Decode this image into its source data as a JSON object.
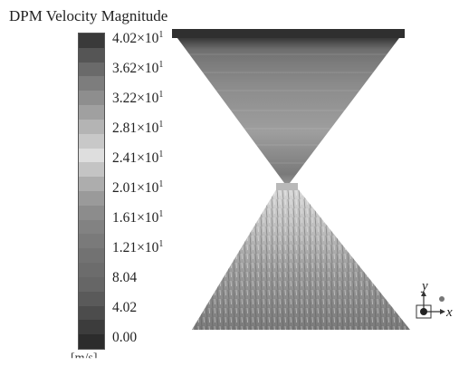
{
  "title": "DPM Velocity Magnitude",
  "colorbar": {
    "labels": [
      {
        "mant": "4.02×10",
        "exp": "1"
      },
      {
        "mant": "3.62×10",
        "exp": "1"
      },
      {
        "mant": "3.22×10",
        "exp": "1"
      },
      {
        "mant": "2.81×10",
        "exp": "1"
      },
      {
        "mant": "2.41×10",
        "exp": "1"
      },
      {
        "mant": "2.01×10",
        "exp": "1"
      },
      {
        "mant": "1.61×10",
        "exp": "1"
      },
      {
        "mant": "1.21×10",
        "exp": "1"
      },
      {
        "mant": "8.04",
        "exp": ""
      },
      {
        "mant": "4.02",
        "exp": ""
      },
      {
        "mant": "0.00",
        "exp": ""
      }
    ],
    "unit_partial": "[m/s]",
    "band_colors": [
      "#3a3a3a",
      "#555555",
      "#6a6a6a",
      "#7d7d7d",
      "#8e8e8e",
      "#a0a0a0",
      "#b4b4b4",
      "#c8c8c8",
      "#dedede",
      "#c4c4c4",
      "#adadad",
      "#9a9a9a",
      "#8c8c8c",
      "#828282",
      "#7a7a7a",
      "#727272",
      "#6c6c6c",
      "#666666",
      "#5a5a5a",
      "#4c4c4c",
      "#3c3c3c",
      "#2c2c2c"
    ]
  },
  "axes": {
    "x": "x",
    "y": "y"
  }
}
